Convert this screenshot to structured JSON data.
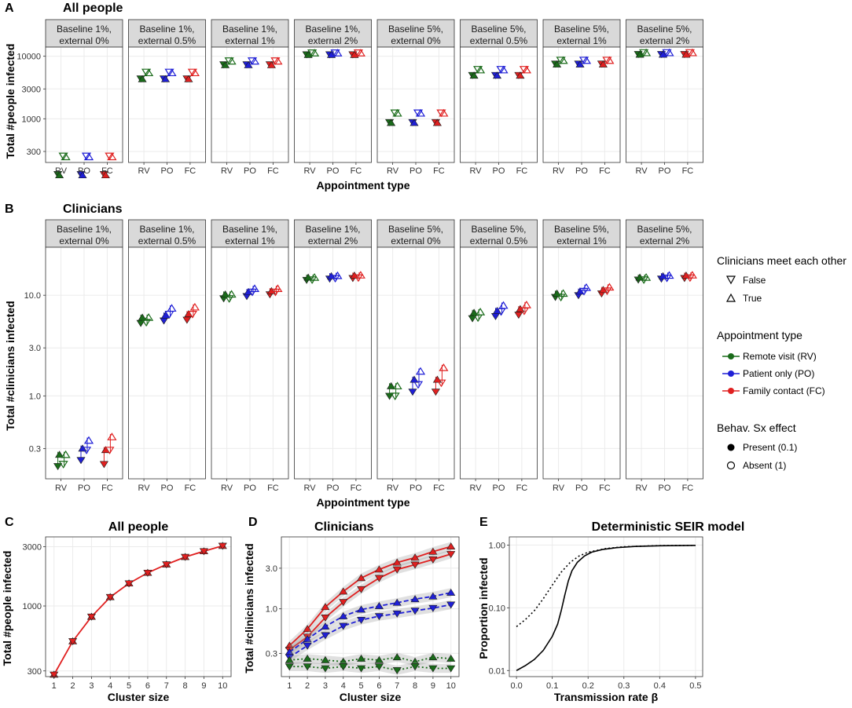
{
  "panel_letters": {
    "A": "A",
    "B": "B",
    "C": "C",
    "D": "D",
    "E": "E"
  },
  "colors": {
    "RV": "#1a6b1a",
    "PO": "#1f1fd6",
    "FC": "#e02020",
    "grid": "#ebebeb",
    "strip": "#d9d9d9"
  },
  "chart_data": [
    {
      "id": "A",
      "type": "scatter",
      "title": "All people",
      "xlabel": "Appointment type",
      "ylabel": "Total #people infected",
      "yscale": "log",
      "ylim": [
        200,
        14000
      ],
      "yticks": [
        300,
        1000,
        3000,
        10000
      ],
      "ytick_labels": [
        "300",
        "1000",
        "3000",
        "10000"
      ],
      "categories": [
        "RV",
        "PO",
        "FC"
      ],
      "facets": [
        {
          "label1": "Baseline 1%,",
          "label2": "external 0%",
          "present": [
            [
              130,
              125
            ],
            [
              130,
              125
            ],
            [
              130,
              125
            ]
          ],
          "absent": [
            [
              255,
              245
            ],
            [
              255,
              245
            ],
            [
              255,
              245
            ]
          ]
        },
        {
          "label1": "Baseline 1%,",
          "label2": "external 0.5%",
          "present": [
            [
              4400,
              4300
            ],
            [
              4400,
              4300
            ],
            [
              4400,
              4300
            ]
          ],
          "absent": [
            [
              5600,
              5400
            ],
            [
              5600,
              5400
            ],
            [
              5600,
              5400
            ]
          ]
        },
        {
          "label1": "Baseline 1%,",
          "label2": "external 1%",
          "present": [
            [
              7400,
              7200
            ],
            [
              7400,
              7200
            ],
            [
              7400,
              7200
            ]
          ],
          "absent": [
            [
              8500,
              8300
            ],
            [
              8500,
              8300
            ],
            [
              8500,
              8300
            ]
          ]
        },
        {
          "label1": "Baseline 1%,",
          "label2": "external 2%",
          "present": [
            [
              10700,
              10500
            ],
            [
              10700,
              10500
            ],
            [
              10700,
              10500
            ]
          ],
          "absent": [
            [
              11400,
              11200
            ],
            [
              11400,
              11200
            ],
            [
              11400,
              11200
            ]
          ]
        },
        {
          "label1": "Baseline 5%,",
          "label2": "external 0%",
          "present": [
            [
              880,
              860
            ],
            [
              880,
              860
            ],
            [
              880,
              860
            ]
          ],
          "absent": [
            [
              1250,
              1220
            ],
            [
              1250,
              1220
            ],
            [
              1250,
              1220
            ]
          ]
        },
        {
          "label1": "Baseline 5%,",
          "label2": "external 0.5%",
          "present": [
            [
              5000,
              4900
            ],
            [
              5000,
              4900
            ],
            [
              5000,
              4900
            ]
          ],
          "absent": [
            [
              6200,
              6000
            ],
            [
              6200,
              6000
            ],
            [
              6200,
              6000
            ]
          ]
        },
        {
          "label1": "Baseline 5%,",
          "label2": "external 1%",
          "present": [
            [
              7600,
              7400
            ],
            [
              7600,
              7400
            ],
            [
              7600,
              7400
            ]
          ],
          "absent": [
            [
              8700,
              8500
            ],
            [
              8700,
              8500
            ],
            [
              8700,
              8500
            ]
          ]
        },
        {
          "label1": "Baseline 5%,",
          "label2": "external 2%",
          "present": [
            [
              10800,
              10600
            ],
            [
              10800,
              10600
            ],
            [
              10800,
              10600
            ]
          ],
          "absent": [
            [
              11500,
              11300
            ],
            [
              11500,
              11300
            ],
            [
              11500,
              11300
            ]
          ]
        }
      ]
    },
    {
      "id": "B",
      "type": "scatter",
      "title": "Clinicians",
      "xlabel": "Appointment type",
      "ylabel": "Total #clinicians infected",
      "yscale": "log",
      "ylim": [
        0.15,
        30
      ],
      "yticks": [
        0.3,
        1.0,
        3.0,
        10.0
      ],
      "ytick_labels": [
        "0.3",
        "1.0",
        "3.0",
        "10.0"
      ],
      "categories": [
        "RV",
        "PO",
        "FC"
      ],
      "facets": [
        {
          "label1": "Baseline 1%,",
          "label2": "external 0%",
          "present": [
            [
              0.2,
              0.26
            ],
            [
              0.23,
              0.3
            ],
            [
              0.21,
              0.29
            ]
          ],
          "absent": [
            [
              0.21,
              0.26
            ],
            [
              0.29,
              0.36
            ],
            [
              0.29,
              0.39
            ]
          ]
        },
        {
          "label1": "Baseline 1%,",
          "label2": "external 0.5%",
          "present": [
            [
              5.3,
              6.0
            ],
            [
              5.6,
              6.3
            ],
            [
              5.7,
              6.5
            ]
          ],
          "absent": [
            [
              5.4,
              6.0
            ],
            [
              6.5,
              7.4
            ],
            [
              6.5,
              7.6
            ]
          ]
        },
        {
          "label1": "Baseline 1%,",
          "label2": "external 1%",
          "present": [
            [
              9.3,
              10.2
            ],
            [
              9.8,
              10.8
            ],
            [
              10.2,
              11.0
            ]
          ],
          "absent": [
            [
              9.3,
              10.2
            ],
            [
              10.8,
              11.6
            ],
            [
              10.8,
              11.6
            ]
          ]
        },
        {
          "label1": "Baseline 1%,",
          "label2": "external 2%",
          "present": [
            [
              14.2,
              15.0
            ],
            [
              14.6,
              15.5
            ],
            [
              14.8,
              15.7
            ]
          ],
          "absent": [
            [
              14.3,
              15.0
            ],
            [
              14.8,
              15.6
            ],
            [
              15.0,
              15.8
            ]
          ]
        },
        {
          "label1": "Baseline 5%,",
          "label2": "external 0%",
          "present": [
            [
              1.0,
              1.25
            ],
            [
              1.1,
              1.45
            ],
            [
              1.1,
              1.45
            ]
          ],
          "absent": [
            [
              1.0,
              1.25
            ],
            [
              1.3,
              1.75
            ],
            [
              1.35,
              1.9
            ]
          ]
        },
        {
          "label1": "Baseline 5%,",
          "label2": "external 0.5%",
          "present": [
            [
              5.9,
              6.7
            ],
            [
              6.2,
              7.0
            ],
            [
              6.4,
              7.3
            ]
          ],
          "absent": [
            [
              6.0,
              6.8
            ],
            [
              6.9,
              7.9
            ],
            [
              7.0,
              8.0
            ]
          ]
        },
        {
          "label1": "Baseline 5%,",
          "label2": "external 1%",
          "present": [
            [
              9.6,
              10.4
            ],
            [
              10.0,
              10.9
            ],
            [
              10.4,
              11.3
            ]
          ],
          "absent": [
            [
              9.6,
              10.4
            ],
            [
              11.0,
              11.9
            ],
            [
              11.1,
              12.0
            ]
          ]
        },
        {
          "label1": "Baseline 5%,",
          "label2": "external 2%",
          "present": [
            [
              14.3,
              15.0
            ],
            [
              14.6,
              15.5
            ],
            [
              14.8,
              15.7
            ]
          ],
          "absent": [
            [
              14.3,
              15.0
            ],
            [
              14.9,
              15.7
            ],
            [
              15.0,
              15.8
            ]
          ]
        }
      ]
    },
    {
      "id": "C",
      "type": "line",
      "title": "All people",
      "xlabel": "Cluster size",
      "ylabel": "Total #people infected",
      "yscale": "log",
      "ylim": [
        270,
        3600
      ],
      "yticks": [
        300,
        1000,
        3000
      ],
      "ytick_labels": [
        "300",
        "1000",
        "3000"
      ],
      "x": [
        1,
        2,
        3,
        4,
        5,
        6,
        7,
        8,
        9,
        10
      ],
      "xtick_labels": [
        "1",
        "2",
        "3",
        "4",
        "5",
        "6",
        "7",
        "8",
        "9",
        "10"
      ],
      "series": [
        {
          "name": "All",
          "values": [
            280,
            520,
            820,
            1180,
            1520,
            1850,
            2160,
            2480,
            2760,
            3050
          ]
        }
      ]
    },
    {
      "id": "D",
      "type": "line",
      "title": "Clinicians",
      "xlabel": "Cluster size",
      "ylabel": "Total #clinicians infected",
      "yscale": "log",
      "ylim": [
        0.16,
        7
      ],
      "yticks": [
        0.3,
        1.0,
        3.0
      ],
      "ytick_labels": [
        "0.3",
        "1.0",
        "3.0"
      ],
      "x": [
        1,
        2,
        3,
        4,
        5,
        6,
        7,
        8,
        9,
        10
      ],
      "xtick_labels": [
        "1",
        "2",
        "3",
        "4",
        "5",
        "6",
        "7",
        "8",
        "9",
        "10"
      ],
      "series": [
        {
          "name": "FC True",
          "group": "FC",
          "meet": "True",
          "values": [
            0.37,
            0.58,
            1.05,
            1.6,
            2.3,
            2.9,
            3.5,
            4.0,
            4.7,
            5.4
          ]
        },
        {
          "name": "FC False",
          "group": "FC",
          "meet": "False",
          "values": [
            0.33,
            0.47,
            0.79,
            1.2,
            1.7,
            2.3,
            2.9,
            3.3,
            3.8,
            4.4
          ]
        },
        {
          "name": "PO True",
          "group": "PO",
          "meet": "True",
          "values": [
            0.31,
            0.44,
            0.62,
            0.82,
            0.98,
            1.08,
            1.18,
            1.3,
            1.4,
            1.55
          ]
        },
        {
          "name": "PO False",
          "group": "PO",
          "meet": "False",
          "values": [
            0.27,
            0.37,
            0.49,
            0.63,
            0.74,
            0.82,
            0.88,
            0.95,
            1.02,
            1.12
          ]
        },
        {
          "name": "RV True",
          "group": "RV",
          "meet": "True",
          "values": [
            0.25,
            0.26,
            0.25,
            0.24,
            0.26,
            0.25,
            0.27,
            0.24,
            0.27,
            0.26
          ]
        },
        {
          "name": "RV False",
          "group": "RV",
          "meet": "False",
          "values": [
            0.21,
            0.21,
            0.2,
            0.21,
            0.2,
            0.21,
            0.19,
            0.21,
            0.2,
            0.2
          ]
        }
      ]
    },
    {
      "id": "E",
      "type": "line",
      "title": "Deterministic SEIR model",
      "xlabel": "Transmission rate β",
      "ylabel": "Proportion infected",
      "yscale": "log",
      "xlim": [
        -0.02,
        0.52
      ],
      "ylim": [
        0.008,
        1.35
      ],
      "yticks": [
        0.01,
        0.1,
        1.0
      ],
      "ytick_labels": [
        "0.01",
        "0.10",
        "1.00"
      ],
      "xticks": [
        0.0,
        0.1,
        0.2,
        0.3,
        0.4,
        0.5
      ],
      "xtick_labels": [
        "0.0",
        "0.1",
        "0.2",
        "0.3",
        "0.4",
        "0.5"
      ],
      "series": [
        {
          "name": "solid",
          "style": "solid",
          "x": [
            0,
            0.025,
            0.05,
            0.075,
            0.1,
            0.115,
            0.125,
            0.135,
            0.145,
            0.155,
            0.17,
            0.19,
            0.21,
            0.24,
            0.28,
            0.33,
            0.4,
            0.5
          ],
          "values": [
            0.01,
            0.012,
            0.015,
            0.021,
            0.035,
            0.055,
            0.09,
            0.16,
            0.27,
            0.39,
            0.53,
            0.67,
            0.77,
            0.85,
            0.91,
            0.95,
            0.975,
            0.99
          ]
        },
        {
          "name": "dotted",
          "style": "dotted",
          "x": [
            0,
            0.025,
            0.05,
            0.075,
            0.1,
            0.125,
            0.15,
            0.175,
            0.2,
            0.25,
            0.3,
            0.4,
            0.5
          ],
          "values": [
            0.05,
            0.065,
            0.09,
            0.14,
            0.23,
            0.37,
            0.53,
            0.67,
            0.77,
            0.88,
            0.94,
            0.98,
            0.99
          ]
        }
      ]
    }
  ],
  "legend": {
    "meet_title": "Clinicians meet each other",
    "meet_false": "False",
    "meet_true": "True",
    "appt_title": "Appointment type",
    "appt_rv": "Remote visit (RV)",
    "appt_po": "Patient only (PO)",
    "appt_fc": "Family contact (FC)",
    "behav_title": "Behav. Sx effect",
    "behav_present": "Present (0.1)",
    "behav_absent": "Absent (1)"
  }
}
